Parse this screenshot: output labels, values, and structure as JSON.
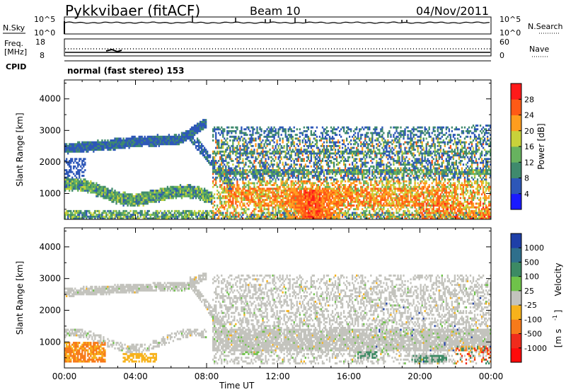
{
  "header": {
    "station": "Pykkvibaer (fitACF)",
    "beam": "Beam 10",
    "date": "04/Nov/2011"
  },
  "top_panels": {
    "nsky_label": "N.Sky",
    "nsky_ticks": [
      "10^5",
      "10^0"
    ],
    "nsearch_label": "N.Search",
    "freq_label_line1": "Freq.",
    "freq_label_line2": "[MHz]",
    "freq_ticks": [
      "18",
      "8"
    ],
    "nave_label": "Nave",
    "nave_ticks": [
      "60",
      "0"
    ],
    "cpid_label": "CPID",
    "cpid_text": "normal (fast stereo) 153"
  },
  "chart_data": [
    {
      "type": "heatmap",
      "panel": "power",
      "xlabel": "",
      "ylabel": "Slant Range [km]",
      "x_ticks": [
        "00:00",
        "04:00",
        "08:00",
        "12:00",
        "16:00",
        "20:00",
        "00:00"
      ],
      "xlim_hours": [
        0,
        24
      ],
      "y_ticks": [
        1000,
        2000,
        3000,
        4000
      ],
      "ylim": [
        180,
        4600
      ],
      "colorbar_label": "Power [dB]",
      "colorbar_ticks": [
        4,
        8,
        12,
        16,
        20,
        24,
        28
      ],
      "colorbar_range": [
        0,
        32
      ],
      "colors": [
        "#1a1aff",
        "#2d57b8",
        "#3f8a6d",
        "#67b25f",
        "#c8d23a",
        "#ff9d1e",
        "#ff5a16",
        "#ff1a1a"
      ]
    },
    {
      "type": "heatmap",
      "panel": "velocity",
      "xlabel": "Time UT",
      "ylabel": "Slant Range [km]",
      "x_ticks": [
        "00:00",
        "04:00",
        "08:00",
        "12:00",
        "16:00",
        "20:00",
        "00:00"
      ],
      "xlim_hours": [
        0,
        24
      ],
      "y_ticks": [
        1000,
        2000,
        3000,
        4000
      ],
      "ylim": [
        180,
        4600
      ],
      "colorbar_label": "Velocity",
      "colorbar_unit": "[m s",
      "colorbar_unit_exp": "-1",
      "colorbar_unit_close": "]",
      "colorbar_ticks": [
        "1000",
        "500",
        "100",
        "25",
        "-25",
        "-100",
        "-500",
        "-1000"
      ],
      "colors": [
        "#1e3fa8",
        "#2e6f8c",
        "#3c8a64",
        "#6fc24a",
        "#c3c3bd",
        "#f7b21b",
        "#f77a1a",
        "#ef2b1c",
        "#ff0a0a"
      ]
    }
  ]
}
